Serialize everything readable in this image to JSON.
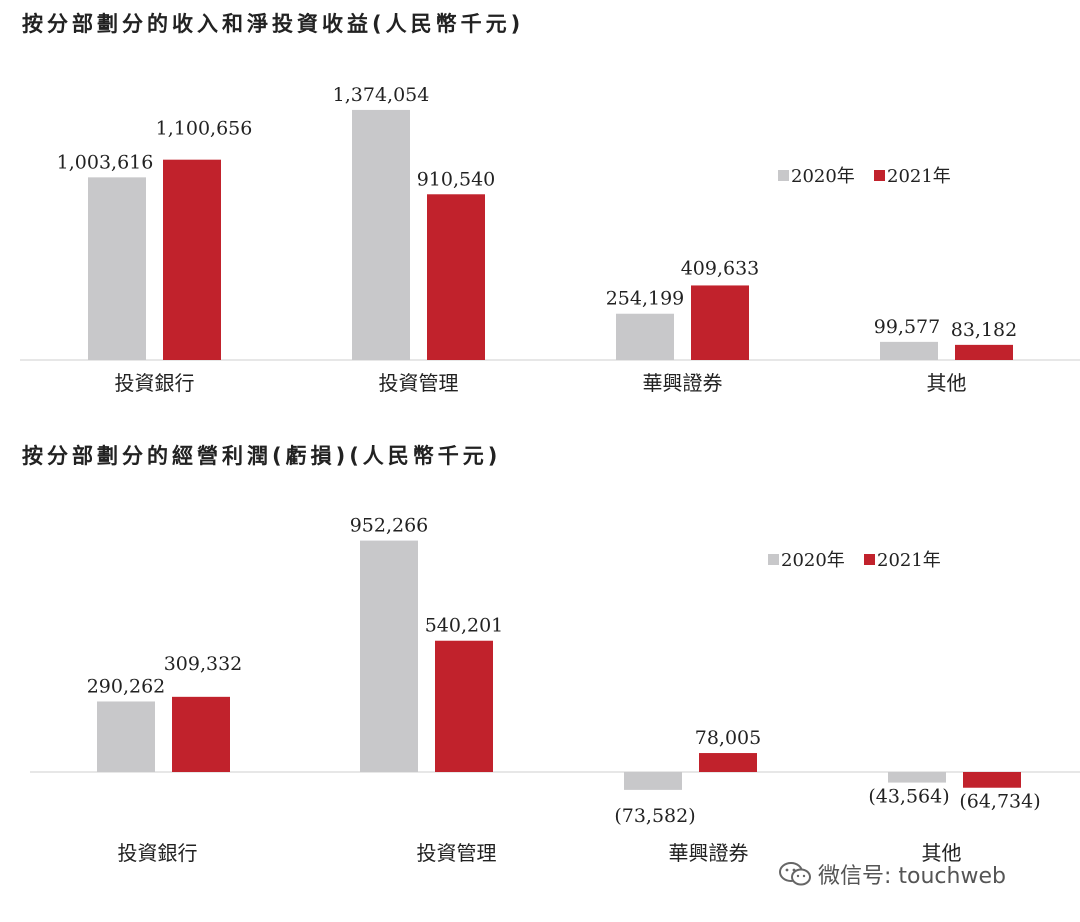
{
  "chart_data": [
    {
      "type": "bar",
      "title": "按分部劃分的收入和淨投資收益(人民幣千元)",
      "categories": [
        "投資銀行",
        "投資管理",
        "華興證券",
        "其他"
      ],
      "series": [
        {
          "name": "2020年",
          "color": "#c8c8ca",
          "values": [
            1003616,
            1374054,
            254199,
            99577
          ],
          "labels": [
            "1,003,616",
            "1,374,054",
            "254,199",
            "99,577"
          ]
        },
        {
          "name": "2021年",
          "color": "#c1222c",
          "values": [
            1100656,
            910540,
            409633,
            83182
          ],
          "labels": [
            "1,100,656",
            "910,540",
            "409,633",
            "83,182"
          ]
        }
      ],
      "legend": "top-right",
      "grid": false
    },
    {
      "type": "bar",
      "title": "按分部劃分的經營利潤(虧損)(人民幣千元)",
      "categories": [
        "投資銀行",
        "投資管理",
        "華興證券",
        "其他"
      ],
      "series": [
        {
          "name": "2020年",
          "color": "#c8c8ca",
          "values": [
            290262,
            952266,
            -73582,
            -43564
          ],
          "labels": [
            "290,262",
            "952,266",
            "(73,582)",
            "(43,564)"
          ]
        },
        {
          "name": "2021年",
          "color": "#c1222c",
          "values": [
            309332,
            540201,
            78005,
            -64734
          ],
          "labels": [
            "309,332",
            "540,201",
            "78,005",
            "(64,734)"
          ]
        }
      ],
      "legend": "top-right",
      "grid": false
    }
  ],
  "watermark": {
    "icon": "wechat-icon",
    "text": "微信号: touchweb"
  }
}
